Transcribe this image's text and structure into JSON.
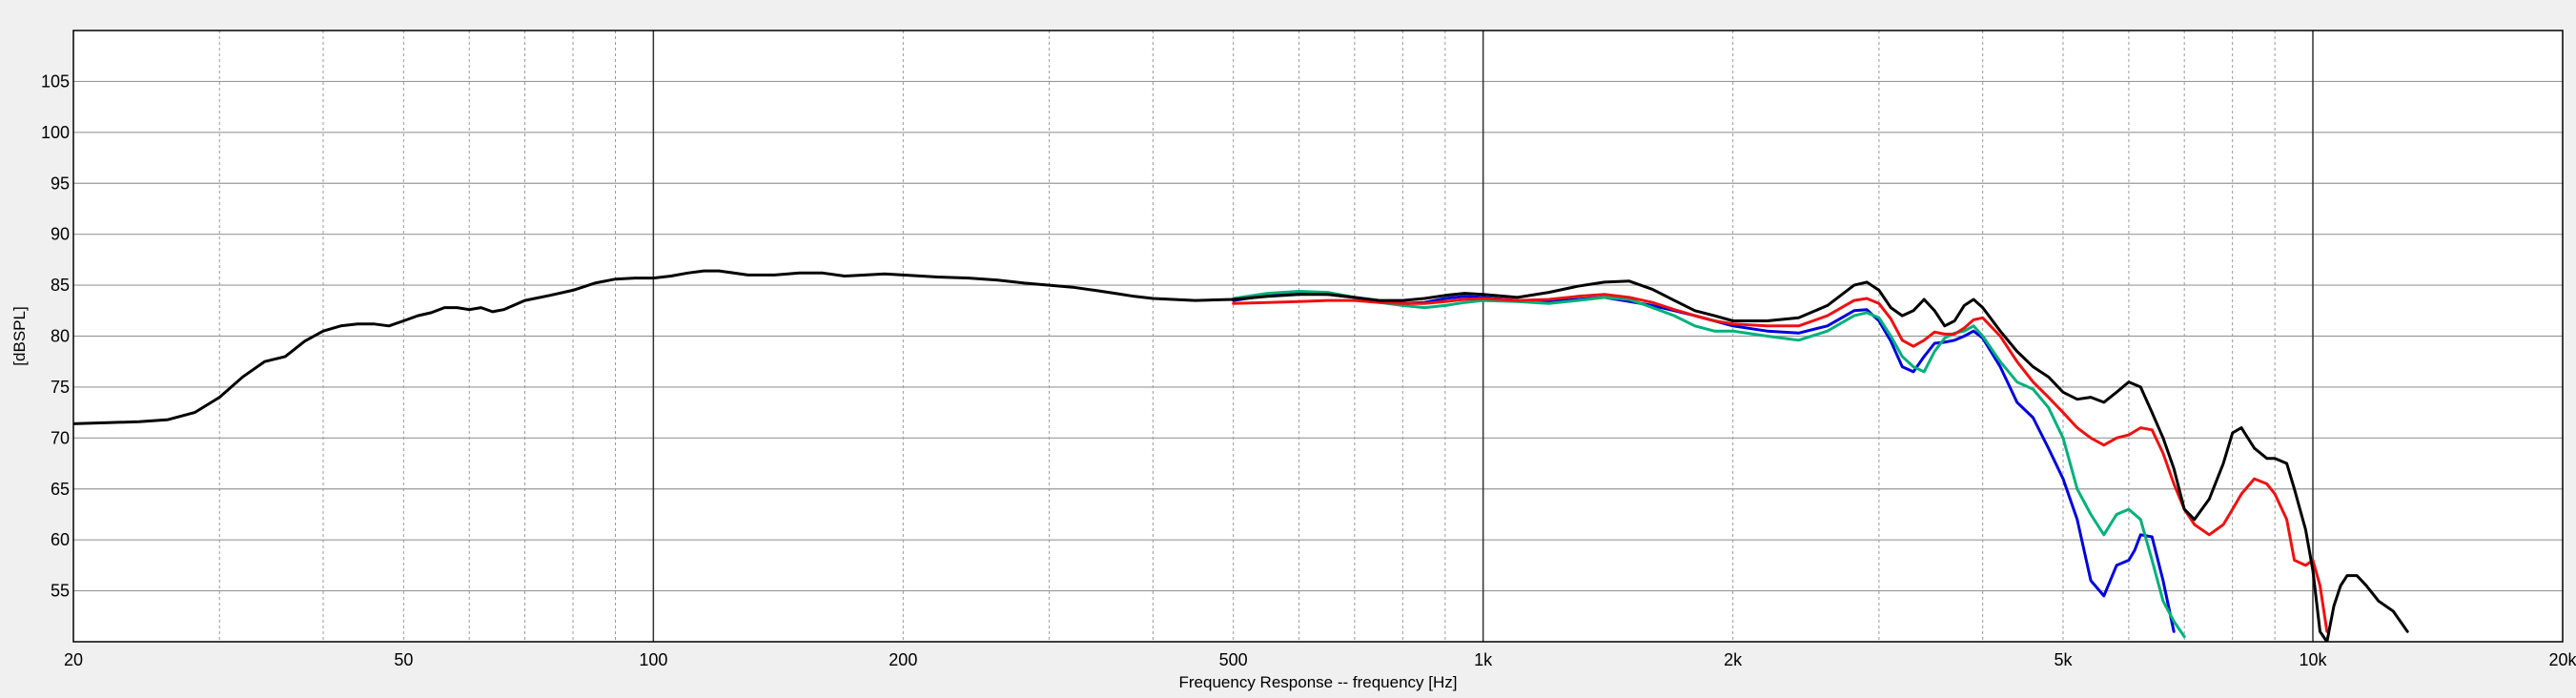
{
  "chart_data": {
    "type": "line",
    "title": "",
    "xlabel": "Frequency Response -- frequency [Hz]",
    "ylabel": "[dBSPL]",
    "x_scale": "log",
    "xlim": [
      20,
      20000
    ],
    "ylim": [
      50,
      110
    ],
    "grid": true,
    "x_major_ticks": [
      100,
      1000,
      10000
    ],
    "x_minor_ticks": [
      30,
      40,
      50,
      60,
      70,
      80,
      90,
      200,
      300,
      400,
      500,
      600,
      700,
      800,
      900,
      2000,
      3000,
      4000,
      5000,
      6000,
      7000,
      8000,
      9000
    ],
    "x_tick_labels": [
      {
        "x": 20,
        "label": "20"
      },
      {
        "x": 50,
        "label": "50"
      },
      {
        "x": 100,
        "label": "100"
      },
      {
        "x": 200,
        "label": "200"
      },
      {
        "x": 500,
        "label": "500"
      },
      {
        "x": 1000,
        "label": "1k"
      },
      {
        "x": 2000,
        "label": "2k"
      },
      {
        "x": 5000,
        "label": "5k"
      },
      {
        "x": 10000,
        "label": "10k"
      },
      {
        "x": 20000,
        "label": "20k"
      }
    ],
    "y_ticks": [
      55,
      60,
      65,
      70,
      75,
      80,
      85,
      90,
      95,
      100,
      105
    ],
    "colors": {
      "background": "#f0f0f0",
      "plot_background": "#ffffff",
      "grid": "#999999",
      "axis": "#000000"
    },
    "series": [
      {
        "color": "#0000dd",
        "x": [
          500,
          550,
          600,
          650,
          700,
          750,
          800,
          850,
          900,
          950,
          1000,
          1100,
          1200,
          1300,
          1400,
          1500,
          1600,
          1700,
          1800,
          1900,
          2000,
          2200,
          2400,
          2600,
          2800,
          2900,
          3000,
          3100,
          3200,
          3300,
          3400,
          3500,
          3600,
          3700,
          3800,
          3900,
          4000,
          4200,
          4400,
          4600,
          4800,
          5000,
          5200,
          5400,
          5600,
          5800,
          6000,
          6100,
          6200,
          6400,
          6600,
          6800
        ],
        "y": [
          83.5,
          84.0,
          84.2,
          84.1,
          83.8,
          83.4,
          83.2,
          83.3,
          83.7,
          83.9,
          83.8,
          83.5,
          83.4,
          83.6,
          83.8,
          83.4,
          83.0,
          82.5,
          82.0,
          81.5,
          81.0,
          80.5,
          80.3,
          81.0,
          82.5,
          82.6,
          81.5,
          79.5,
          77.0,
          76.5,
          78.0,
          79.3,
          79.4,
          79.6,
          80.0,
          80.5,
          79.8,
          77.0,
          73.5,
          72.0,
          69.0,
          66.0,
          62.0,
          56.0,
          54.5,
          57.5,
          58.0,
          59.0,
          60.5,
          60.3,
          56.0,
          51.0
        ]
      },
      {
        "color": "#00b07a",
        "x": [
          500,
          550,
          600,
          650,
          700,
          750,
          800,
          850,
          900,
          950,
          1000,
          1100,
          1200,
          1300,
          1400,
          1500,
          1600,
          1700,
          1800,
          1900,
          2000,
          2200,
          2400,
          2600,
          2800,
          2900,
          3000,
          3100,
          3200,
          3300,
          3400,
          3500,
          3600,
          3700,
          3800,
          3900,
          4000,
          4200,
          4400,
          4600,
          4800,
          5000,
          5200,
          5400,
          5600,
          5800,
          6000,
          6200,
          6400,
          6600,
          6800,
          7000
        ],
        "y": [
          83.7,
          84.2,
          84.4,
          84.3,
          83.8,
          83.3,
          83.0,
          82.8,
          83.0,
          83.3,
          83.5,
          83.4,
          83.2,
          83.5,
          83.8,
          83.6,
          82.8,
          82.0,
          81.0,
          80.5,
          80.5,
          80.0,
          79.6,
          80.5,
          82.0,
          82.3,
          81.8,
          80.0,
          78.0,
          77.0,
          76.5,
          78.5,
          79.8,
          80.3,
          80.5,
          81.0,
          80.0,
          77.5,
          75.5,
          74.8,
          73.0,
          70.0,
          65.0,
          62.5,
          60.5,
          62.5,
          63.0,
          62.0,
          58.0,
          54.0,
          52.0,
          50.5
        ]
      },
      {
        "color": "#ee1111",
        "x": [
          500,
          550,
          600,
          650,
          700,
          750,
          800,
          850,
          900,
          950,
          1000,
          1100,
          1200,
          1300,
          1400,
          1500,
          1600,
          1700,
          1800,
          1900,
          2000,
          2200,
          2400,
          2600,
          2800,
          2900,
          3000,
          3100,
          3200,
          3300,
          3400,
          3500,
          3600,
          3700,
          3800,
          3900,
          4000,
          4200,
          4400,
          4600,
          4800,
          5000,
          5200,
          5400,
          5600,
          5800,
          6000,
          6200,
          6400,
          6600,
          6800,
          7000,
          7200,
          7500,
          7800,
          8000,
          8200,
          8500,
          8800,
          9000,
          9300,
          9500,
          9800,
          10000,
          10200,
          10400
        ],
        "y": [
          83.2,
          83.3,
          83.4,
          83.5,
          83.5,
          83.3,
          83.2,
          83.2,
          83.4,
          83.6,
          83.7,
          83.5,
          83.6,
          83.9,
          84.1,
          83.8,
          83.3,
          82.6,
          82.0,
          81.5,
          81.2,
          81.0,
          81.0,
          82.0,
          83.5,
          83.7,
          83.2,
          81.7,
          79.6,
          79.0,
          79.6,
          80.4,
          80.2,
          80.2,
          80.8,
          81.6,
          81.8,
          80.0,
          77.5,
          75.5,
          74.0,
          72.5,
          71.0,
          70.0,
          69.3,
          70.0,
          70.3,
          71.0,
          70.8,
          68.5,
          65.5,
          63.0,
          61.5,
          60.5,
          61.5,
          63.0,
          64.5,
          66.0,
          65.5,
          64.5,
          62.0,
          58.0,
          57.5,
          58.0,
          55.5,
          51.0
        ]
      },
      {
        "color": "#000000",
        "x": [
          20,
          22,
          24,
          26,
          28,
          30,
          32,
          34,
          36,
          38,
          40,
          42,
          44,
          46,
          48,
          50,
          52,
          54,
          56,
          58,
          60,
          62,
          64,
          66,
          70,
          75,
          80,
          85,
          90,
          95,
          100,
          105,
          110,
          115,
          120,
          130,
          140,
          150,
          160,
          170,
          180,
          190,
          200,
          220,
          240,
          260,
          280,
          300,
          320,
          340,
          360,
          380,
          400,
          450,
          500,
          550,
          600,
          650,
          700,
          750,
          800,
          850,
          900,
          950,
          1000,
          1100,
          1200,
          1300,
          1400,
          1500,
          1600,
          1700,
          1800,
          1900,
          2000,
          2200,
          2400,
          2600,
          2800,
          2900,
          3000,
          3100,
          3200,
          3300,
          3400,
          3500,
          3600,
          3700,
          3800,
          3900,
          4000,
          4200,
          4400,
          4600,
          4800,
          5000,
          5200,
          5400,
          5600,
          5800,
          6000,
          6200,
          6400,
          6600,
          6800,
          7000,
          7200,
          7500,
          7800,
          8000,
          8200,
          8500,
          8800,
          9000,
          9300,
          9500,
          9800,
          10000,
          10200,
          10400,
          10600,
          10800,
          11000,
          11300,
          11600,
          12000,
          12500,
          13000
        ],
        "y": [
          71.4,
          71.5,
          71.6,
          71.8,
          72.5,
          74.0,
          76.0,
          77.5,
          78.0,
          79.5,
          80.5,
          81.0,
          81.2,
          81.2,
          81.0,
          81.5,
          82.0,
          82.3,
          82.8,
          82.8,
          82.6,
          82.8,
          82.4,
          82.6,
          83.5,
          84.0,
          84.5,
          85.2,
          85.6,
          85.7,
          85.7,
          85.9,
          86.2,
          86.4,
          86.4,
          86.0,
          86.0,
          86.2,
          86.2,
          85.9,
          86.0,
          86.1,
          86.0,
          85.8,
          85.7,
          85.5,
          85.2,
          85.0,
          84.8,
          84.5,
          84.2,
          83.9,
          83.7,
          83.5,
          83.6,
          83.9,
          84.1,
          84.1,
          83.8,
          83.5,
          83.5,
          83.7,
          84.0,
          84.2,
          84.1,
          83.8,
          84.3,
          84.9,
          85.3,
          85.4,
          84.6,
          83.5,
          82.5,
          82.0,
          81.5,
          81.5,
          81.8,
          83.0,
          85.0,
          85.3,
          84.5,
          82.8,
          82.0,
          82.5,
          83.6,
          82.5,
          81.0,
          81.5,
          83.0,
          83.6,
          82.8,
          80.5,
          78.5,
          77.0,
          76.0,
          74.5,
          73.8,
          74.0,
          73.5,
          74.5,
          75.5,
          75.0,
          72.5,
          70.0,
          67.0,
          63.0,
          62.0,
          64.0,
          67.5,
          70.5,
          71.0,
          69.0,
          68.0,
          68.0,
          67.5,
          65.0,
          61.0,
          57.0,
          51.0,
          50.0,
          53.5,
          55.5,
          56.5,
          56.5,
          55.5,
          54.0,
          53.0,
          51.0
        ]
      }
    ]
  }
}
